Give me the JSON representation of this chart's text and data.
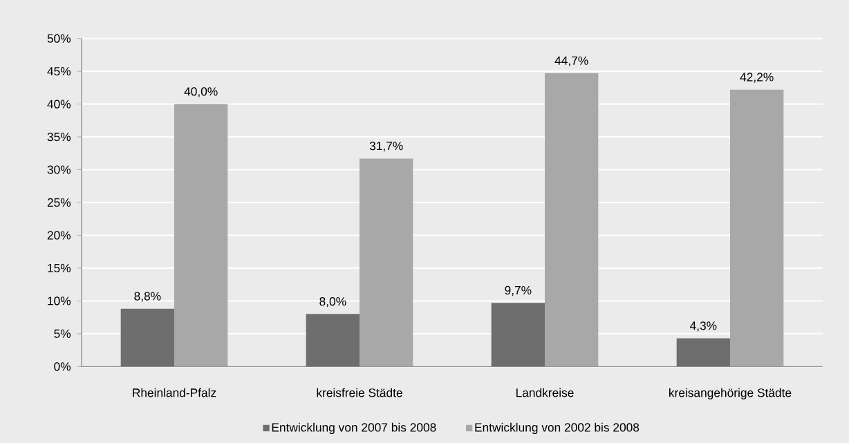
{
  "chart_data": {
    "type": "bar",
    "categories": [
      "Rheinland-Pfalz",
      "kreisfreie Städte",
      "Landkreise",
      "kreisangehörige Städte"
    ],
    "series": [
      {
        "name": "Entwicklung von 2007 bis 2008",
        "color": "#6e6e6e",
        "values": [
          8.8,
          8.0,
          9.7,
          4.3
        ],
        "value_labels": [
          "8,8%",
          "8,0%",
          "9,7%",
          "4,3%"
        ]
      },
      {
        "name": "Entwicklung von 2002 bis 2008",
        "color": "#a8a8a8",
        "values": [
          40.0,
          31.7,
          44.7,
          42.2
        ],
        "value_labels": [
          "40,0%",
          "31,7%",
          "44,7%",
          "42,2%"
        ]
      }
    ],
    "ylim": [
      0,
      50
    ],
    "yticks": [
      {
        "value": 0,
        "label": "0%"
      },
      {
        "value": 5,
        "label": "5%"
      },
      {
        "value": 10,
        "label": "10%"
      },
      {
        "value": 15,
        "label": "15%"
      },
      {
        "value": 20,
        "label": "20%"
      },
      {
        "value": 25,
        "label": "25%"
      },
      {
        "value": 30,
        "label": "30%"
      },
      {
        "value": 35,
        "label": "35%"
      },
      {
        "value": 40,
        "label": "40%"
      },
      {
        "value": 45,
        "label": "45%"
      },
      {
        "value": 50,
        "label": "50%"
      }
    ],
    "grid": "y",
    "legend": "bottom"
  }
}
